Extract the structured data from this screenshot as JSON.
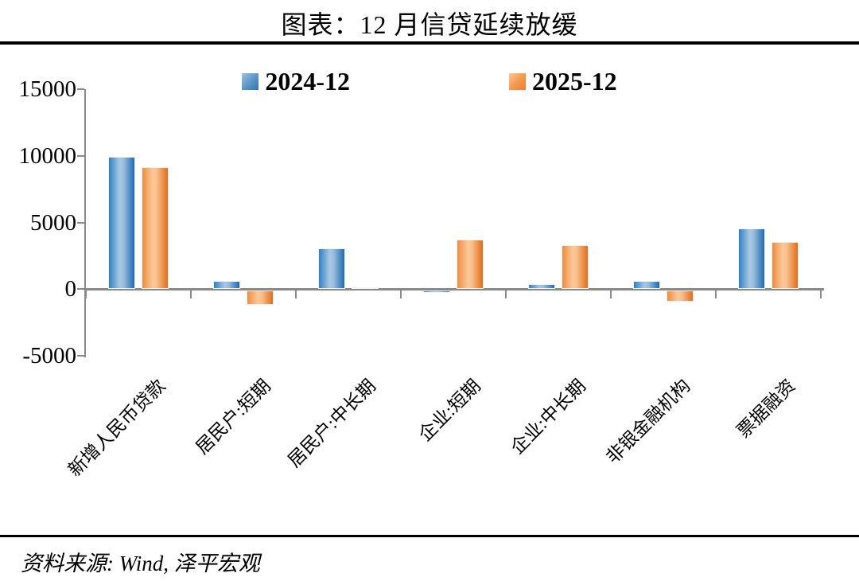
{
  "title": "图表：12 月信贷延续放缓",
  "legend": {
    "items": [
      {
        "label": "2024-12",
        "color": "#2E75B6"
      },
      {
        "label": "2025-12",
        "color": "#ED7D31"
      }
    ]
  },
  "source": "资料来源: Wind, 泽平宏观",
  "chart_data": {
    "type": "bar",
    "title": "图表：12 月信贷延续放缓",
    "categories": [
      "新增人民币贷款",
      "居民户:短期",
      "居民户:中长期",
      "企业:短期",
      "企业:中长期",
      "非银金融机构",
      "票据融资"
    ],
    "series": [
      {
        "name": "2024-12",
        "color": "#2E75B6",
        "values": [
          9900,
          600,
          3050,
          -150,
          400,
          600,
          4550
        ]
      },
      {
        "name": "2025-12",
        "color": "#ED7D31",
        "values": [
          9150,
          -1050,
          120,
          3700,
          3300,
          -850,
          3550
        ]
      }
    ],
    "xlabel": "",
    "ylabel": "",
    "ylim": [
      -5000,
      15000
    ],
    "yticks": [
      15000,
      10000,
      5000,
      0,
      -5000
    ],
    "grid": false,
    "legend_position": "top-center",
    "source": "资料来源: Wind, 泽平宏观"
  }
}
